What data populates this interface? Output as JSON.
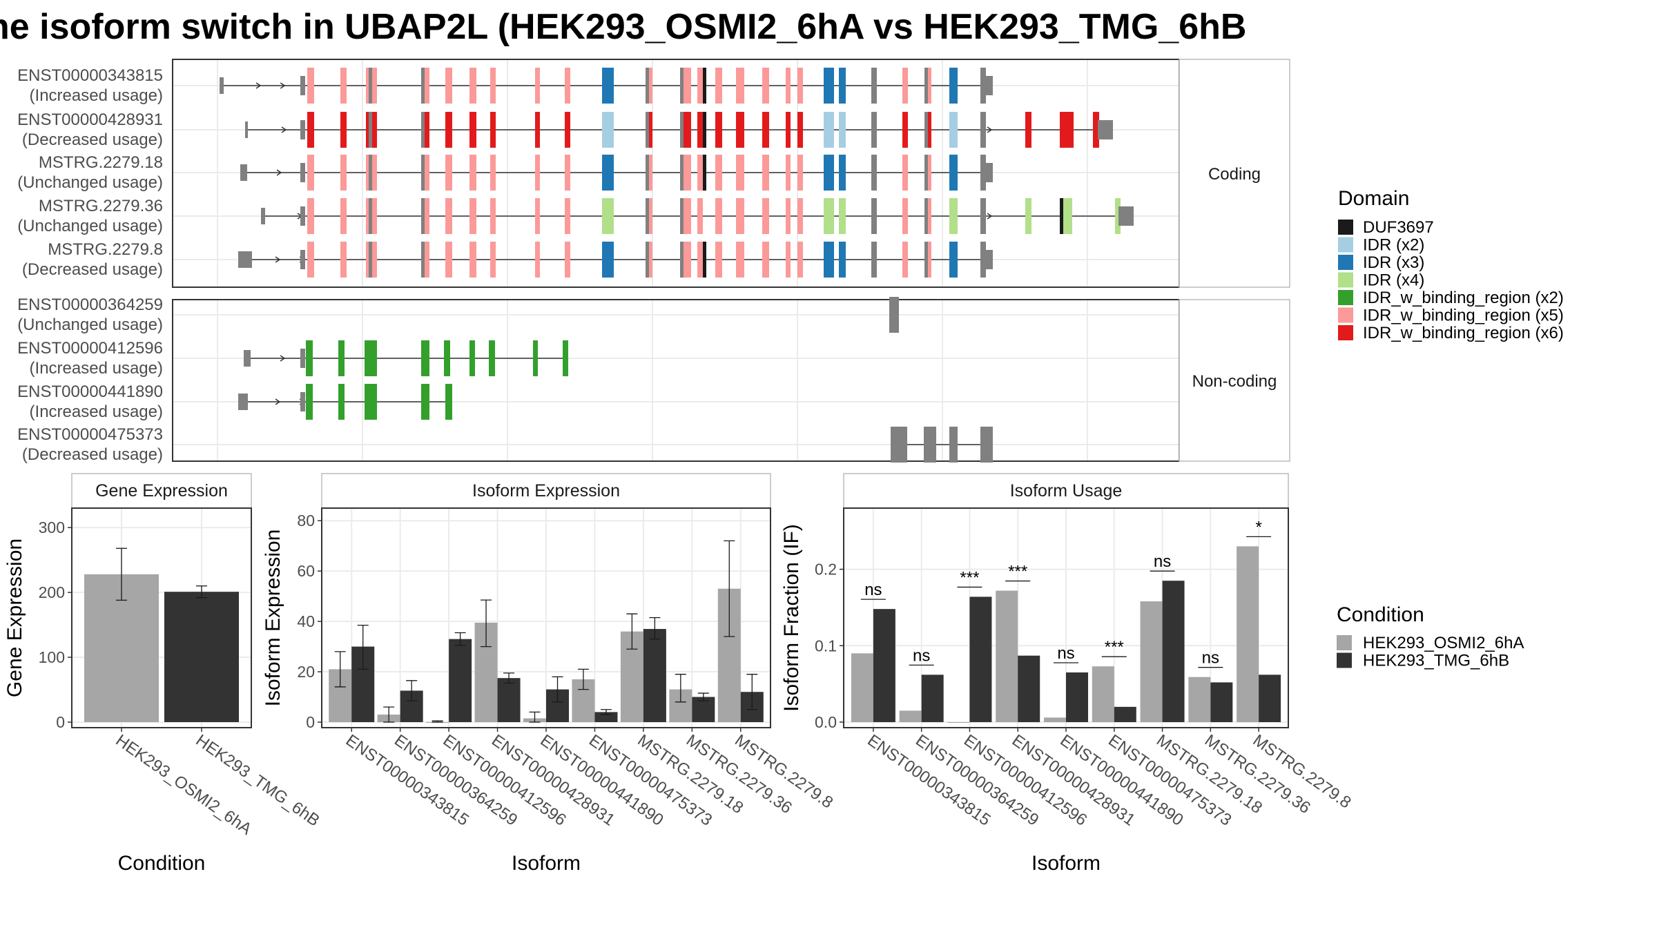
{
  "title": "he isoform switch in UBAP2L (HEK293_OSMI2_6hA vs HEK293_TMG_6hB",
  "colors": {
    "DUF3697": "#1a1a1a",
    "IDR (x2)": "#a6cee3",
    "IDR (x3)": "#1f78b4",
    "IDR (x4)": "#b2df8a",
    "IDR_w_binding_region (x2)": "#33a02c",
    "IDR_w_binding_region (x5)": "#fb9a99",
    "IDR_w_binding_region (x6)": "#e31a1c",
    "none": "#808080",
    "condA": "#a6a6a6",
    "condB": "#333333",
    "strip_bg": "#ffffff",
    "grid": "#ebebeb",
    "panel_border": "#333333"
  },
  "structure": {
    "facets": [
      "Coding",
      "Non-coding"
    ],
    "coding": [
      {
        "id": "ENST00000343815",
        "usage": "(Increased usage)"
      },
      {
        "id": "ENST00000428931",
        "usage": "(Decreased usage)"
      },
      {
        "id": "MSTRG.2279.18",
        "usage": "(Unchanged usage)"
      },
      {
        "id": "MSTRG.2279.36",
        "usage": "(Unchanged usage)"
      },
      {
        "id": "MSTRG.2279.8",
        "usage": "(Decreased usage)"
      }
    ],
    "noncoding": [
      {
        "id": "ENST00000364259",
        "usage": "(Unchanged usage)"
      },
      {
        "id": "ENST00000412596",
        "usage": "(Increased usage)"
      },
      {
        "id": "ENST00000441890",
        "usage": "(Increased usage)"
      },
      {
        "id": "ENST00000475373",
        "usage": "(Decreased usage)"
      }
    ]
  },
  "legend": {
    "domain_title": "Domain",
    "domain_items": [
      "DUF3697",
      "IDR (x2)",
      "IDR (x3)",
      "IDR (x4)",
      "IDR_w_binding_region (x2)",
      "IDR_w_binding_region (x5)",
      "IDR_w_binding_region (x6)"
    ],
    "condition_title": "Condition",
    "condition_items": [
      "HEK293_OSMI2_6hA",
      "HEK293_TMG_6hB"
    ]
  },
  "chart_data": [
    {
      "type": "bar",
      "title": "Gene Expression",
      "xlabel": "Condition",
      "ylabel": "Gene Expression",
      "ylim": [
        0,
        330
      ],
      "yticks": [
        0,
        100,
        200,
        300
      ],
      "categories": [
        "HEK293_OSMI2_6hA",
        "HEK293_TMG_6hB"
      ],
      "values": [
        228,
        201
      ],
      "errors": [
        [
          188,
          268
        ],
        [
          192,
          210
        ]
      ]
    },
    {
      "type": "bar",
      "title": "Isoform Expression",
      "xlabel": "Isoform",
      "ylabel": "Isoform Expression",
      "ylim": [
        0,
        85
      ],
      "yticks": [
        0,
        20,
        40,
        60,
        80
      ],
      "categories": [
        "ENST00000343815",
        "ENST00000364259",
        "ENST00000412596",
        "ENST00000428931",
        "ENST00000441890",
        "ENST00000475373",
        "MSTRG.2279.18",
        "MSTRG.2279.36",
        "MSTRG.2279.8"
      ],
      "series": [
        {
          "name": "HEK293_OSMI2_6hA",
          "values": [
            21,
            3,
            0,
            39.5,
            1.5,
            17,
            36,
            13,
            53
          ],
          "errors": [
            [
              14,
              28
            ],
            [
              0,
              6
            ],
            [
              0,
              0.5
            ],
            [
              30,
              48.5
            ],
            [
              0,
              4
            ],
            [
              13,
              21
            ],
            [
              29,
              43
            ],
            [
              8,
              19
            ],
            [
              34,
              72
            ]
          ]
        },
        {
          "name": "HEK293_TMG_6hB",
          "values": [
            30,
            12.5,
            33,
            17.5,
            13,
            4,
            37,
            10,
            12
          ],
          "errors": [
            [
              21,
              38.5
            ],
            [
              8.5,
              16.5
            ],
            [
              30.5,
              35.5
            ],
            [
              15.5,
              19.5
            ],
            [
              8,
              18
            ],
            [
              3,
              5
            ],
            [
              33,
              41.5
            ],
            [
              8.5,
              11.5
            ],
            [
              5,
              19
            ]
          ]
        }
      ]
    },
    {
      "type": "bar",
      "title": "Isoform Usage",
      "xlabel": "Isoform",
      "ylabel": "Isoform Fraction (IF)",
      "ylim": [
        0,
        0.28
      ],
      "yticks": [
        0,
        0.1,
        0.2
      ],
      "ytick_labels": [
        "0.0",
        "0.1",
        "0.2"
      ],
      "categories": [
        "ENST00000343815",
        "ENST00000364259",
        "ENST00000412596",
        "ENST00000428931",
        "ENST00000441890",
        "ENST00000475373",
        "MSTRG.2279.18",
        "MSTRG.2279.36",
        "MSTRG.2279.8"
      ],
      "series": [
        {
          "name": "HEK293_OSMI2_6hA",
          "values": [
            0.09,
            0.015,
            0.0,
            0.172,
            0.006,
            0.073,
            0.158,
            0.059,
            0.23
          ]
        },
        {
          "name": "HEK293_TMG_6hB",
          "values": [
            0.148,
            0.062,
            0.164,
            0.087,
            0.065,
            0.02,
            0.185,
            0.052,
            0.062
          ]
        }
      ],
      "significance": [
        "ns",
        "ns",
        "***",
        "***",
        "ns",
        "***",
        "ns",
        "ns",
        "*"
      ]
    }
  ]
}
